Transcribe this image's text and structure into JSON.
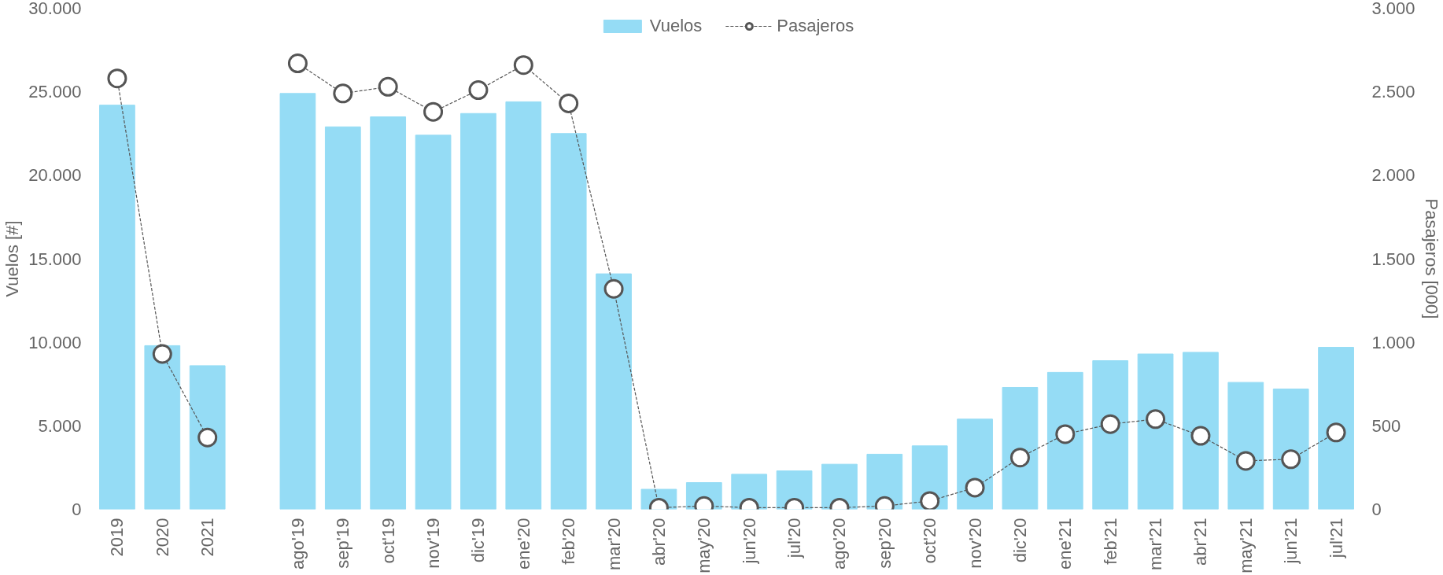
{
  "chart_data": {
    "type": "bar",
    "categories": [
      "2019",
      "2020",
      "2021",
      null,
      "ago'19",
      "sep'19",
      "oct'19",
      "nov'19",
      "dic'19",
      "ene'20",
      "feb'20",
      "mar'20",
      "abr'20",
      "may'20",
      "jun'20",
      "jul'20",
      "ago'20",
      "sep'20",
      "oct'20",
      "nov'20",
      "dic'20",
      "ene'21",
      "feb'21",
      "mar'21",
      "abr'21",
      "may'21",
      "jun'21",
      "jul'21"
    ],
    "series": [
      {
        "name": "Vuelos",
        "color": "#95dcf5",
        "values": [
          24200,
          9800,
          8600,
          null,
          24900,
          22900,
          23500,
          22400,
          23700,
          24400,
          22500,
          14100,
          1200,
          1600,
          2100,
          2300,
          2700,
          3300,
          3800,
          5400,
          7300,
          8200,
          8900,
          9300,
          9400,
          7600,
          7200,
          9700
        ]
      },
      {
        "name": "Pasajeros",
        "type": "line",
        "axis": "y2",
        "color": "#555555",
        "marker": "circle",
        "line_style": "dashed",
        "values": [
          2580,
          930,
          430,
          null,
          2670,
          2490,
          2530,
          2380,
          2510,
          2660,
          2430,
          1320,
          10,
          20,
          10,
          10,
          10,
          20,
          50,
          130,
          310,
          450,
          510,
          540,
          440,
          290,
          300,
          460
        ]
      }
    ],
    "ylabel": "Vuelos [#]",
    "y2label": "Pasajeros [000]",
    "ylim": [
      0,
      30000
    ],
    "yticks": [
      0,
      {
        "value": 5000,
        "label": "5.000"
      },
      {
        "value": 10000,
        "label": "10.000"
      },
      {
        "value": 15000,
        "label": "15.000"
      },
      {
        "value": 20000,
        "label": "20.000"
      },
      {
        "value": 25000,
        "label": "25.000"
      },
      {
        "value": 30000,
        "label": "30.000"
      }
    ],
    "y2lim": [
      0,
      3000
    ],
    "y2ticks": [
      0,
      500,
      {
        "value": 1000,
        "label": "1.000"
      },
      {
        "value": 1500,
        "label": "1.500"
      },
      {
        "value": 2000,
        "label": "2.000"
      },
      {
        "value": 2500,
        "label": "2.500"
      },
      {
        "value": 3000,
        "label": "3.000"
      }
    ],
    "legend": "top",
    "grid": false
  }
}
